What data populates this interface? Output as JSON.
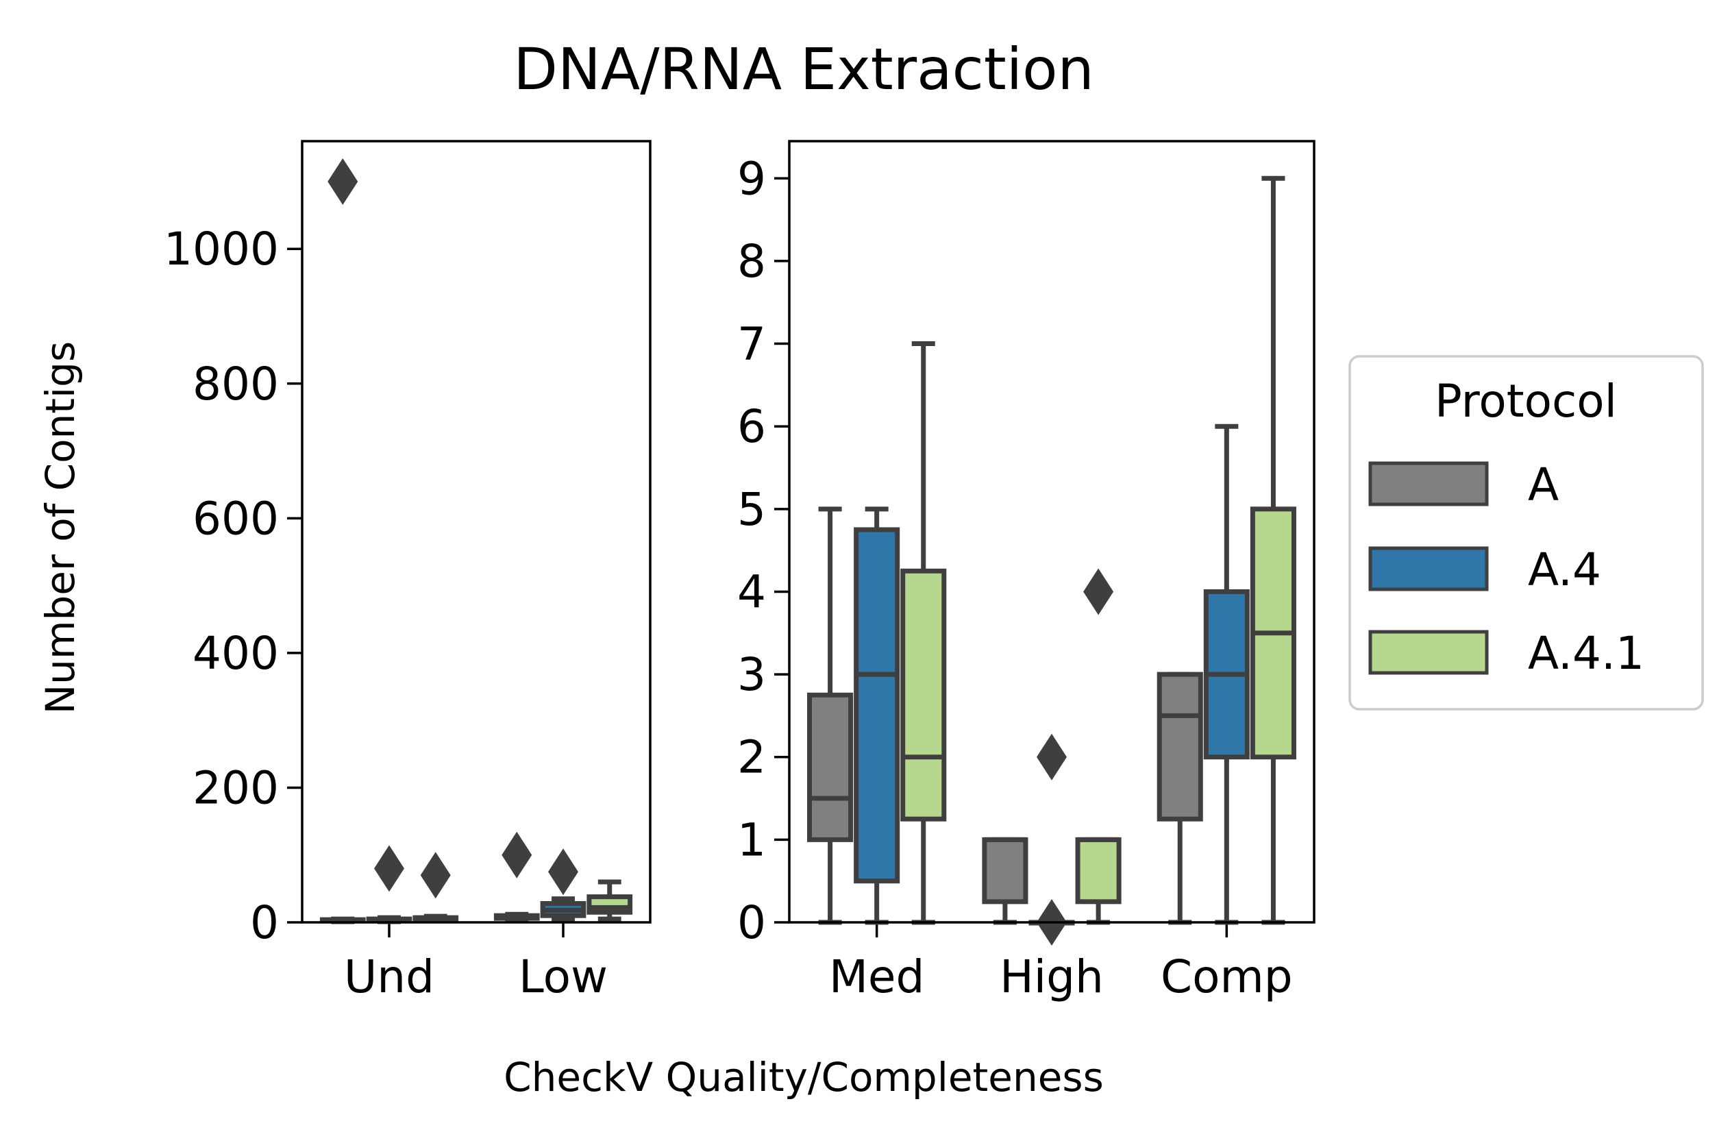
{
  "figure": {
    "title": "DNA/RNA Extraction",
    "ylabel": "Number of Contigs",
    "xlabel": "CheckV Quality/Completeness"
  },
  "legend": {
    "title": "Protocol",
    "entries": [
      {
        "label": "A",
        "color": "#808080"
      },
      {
        "label": "A.4",
        "color": "#2f77a8"
      },
      {
        "label": "A.4.1",
        "color": "#b5d78e"
      }
    ]
  },
  "chart_data": [
    {
      "type": "box",
      "panel": "left",
      "categories": [
        "Und",
        "Low"
      ],
      "ylim": [
        0,
        1160
      ],
      "yticks": [
        0,
        200,
        400,
        600,
        800,
        1000
      ],
      "ytick_labels": [
        "0",
        "200",
        "400",
        "600",
        "800",
        "1000"
      ],
      "grid": false,
      "series": [
        {
          "name": "A",
          "color": "#808080",
          "boxes": [
            {
              "category": "Und",
              "whislo": 1,
              "q1": 2,
              "med": 3,
              "q3": 4,
              "whishi": 5,
              "fliers": [
                1100
              ]
            },
            {
              "category": "Low",
              "whislo": 4,
              "q1": 6,
              "med": 8,
              "q3": 10,
              "whishi": 12,
              "fliers": [
                100
              ]
            }
          ]
        },
        {
          "name": "A.4",
          "color": "#2f77a8",
          "boxes": [
            {
              "category": "Und",
              "whislo": 1,
              "q1": 3,
              "med": 4,
              "q3": 5,
              "whishi": 7,
              "fliers": [
                80
              ]
            },
            {
              "category": "Low",
              "whislo": 5,
              "q1": 10,
              "med": 18,
              "q3": 28,
              "whishi": 35,
              "fliers": [
                75
              ]
            }
          ]
        },
        {
          "name": "A.4.1",
          "color": "#b5d78e",
          "boxes": [
            {
              "category": "Und",
              "whislo": 2,
              "q1": 4,
              "med": 5,
              "q3": 7,
              "whishi": 9,
              "fliers": [
                70
              ]
            },
            {
              "category": "Low",
              "whislo": 5,
              "q1": 15,
              "med": 22,
              "q3": 38,
              "whishi": 60,
              "fliers": []
            }
          ]
        }
      ]
    },
    {
      "type": "box",
      "panel": "right",
      "categories": [
        "Med",
        "High",
        "Comp"
      ],
      "ylim": [
        0,
        9.45
      ],
      "yticks": [
        0,
        1,
        2,
        3,
        4,
        5,
        6,
        7,
        8,
        9
      ],
      "ytick_labels": [
        "0",
        "1",
        "2",
        "3",
        "4",
        "5",
        "6",
        "7",
        "8",
        "9"
      ],
      "grid": false,
      "series": [
        {
          "name": "A",
          "color": "#808080",
          "boxes": [
            {
              "category": "Med",
              "whislo": 0,
              "q1": 1,
              "med": 1.5,
              "q3": 2.75,
              "whishi": 5,
              "fliers": []
            },
            {
              "category": "High",
              "whislo": 0,
              "q1": 0.25,
              "med": 1,
              "q3": 1,
              "whishi": 1,
              "fliers": []
            },
            {
              "category": "Comp",
              "whislo": 0,
              "q1": 1.25,
              "med": 2.5,
              "q3": 3,
              "whishi": 3,
              "fliers": []
            }
          ]
        },
        {
          "name": "A.4",
          "color": "#2f77a8",
          "boxes": [
            {
              "category": "Med",
              "whislo": 0,
              "q1": 0.5,
              "med": 3,
              "q3": 4.75,
              "whishi": 5,
              "fliers": []
            },
            {
              "category": "High",
              "whislo": 0,
              "q1": 0,
              "med": 0,
              "q3": 0,
              "whishi": 0,
              "fliers": [
                0,
                2
              ]
            },
            {
              "category": "Comp",
              "whislo": 0,
              "q1": 2,
              "med": 3,
              "q3": 4,
              "whishi": 6,
              "fliers": []
            }
          ]
        },
        {
          "name": "A.4.1",
          "color": "#b5d78e",
          "boxes": [
            {
              "category": "Med",
              "whislo": 0,
              "q1": 1.25,
              "med": 2,
              "q3": 4.25,
              "whishi": 7,
              "fliers": []
            },
            {
              "category": "High",
              "whislo": 0,
              "q1": 0.25,
              "med": 1,
              "q3": 1,
              "whishi": 1,
              "fliers": [
                4
              ]
            },
            {
              "category": "Comp",
              "whislo": 0,
              "q1": 2,
              "med": 3.5,
              "q3": 5,
              "whishi": 9,
              "fliers": []
            }
          ]
        }
      ]
    }
  ]
}
